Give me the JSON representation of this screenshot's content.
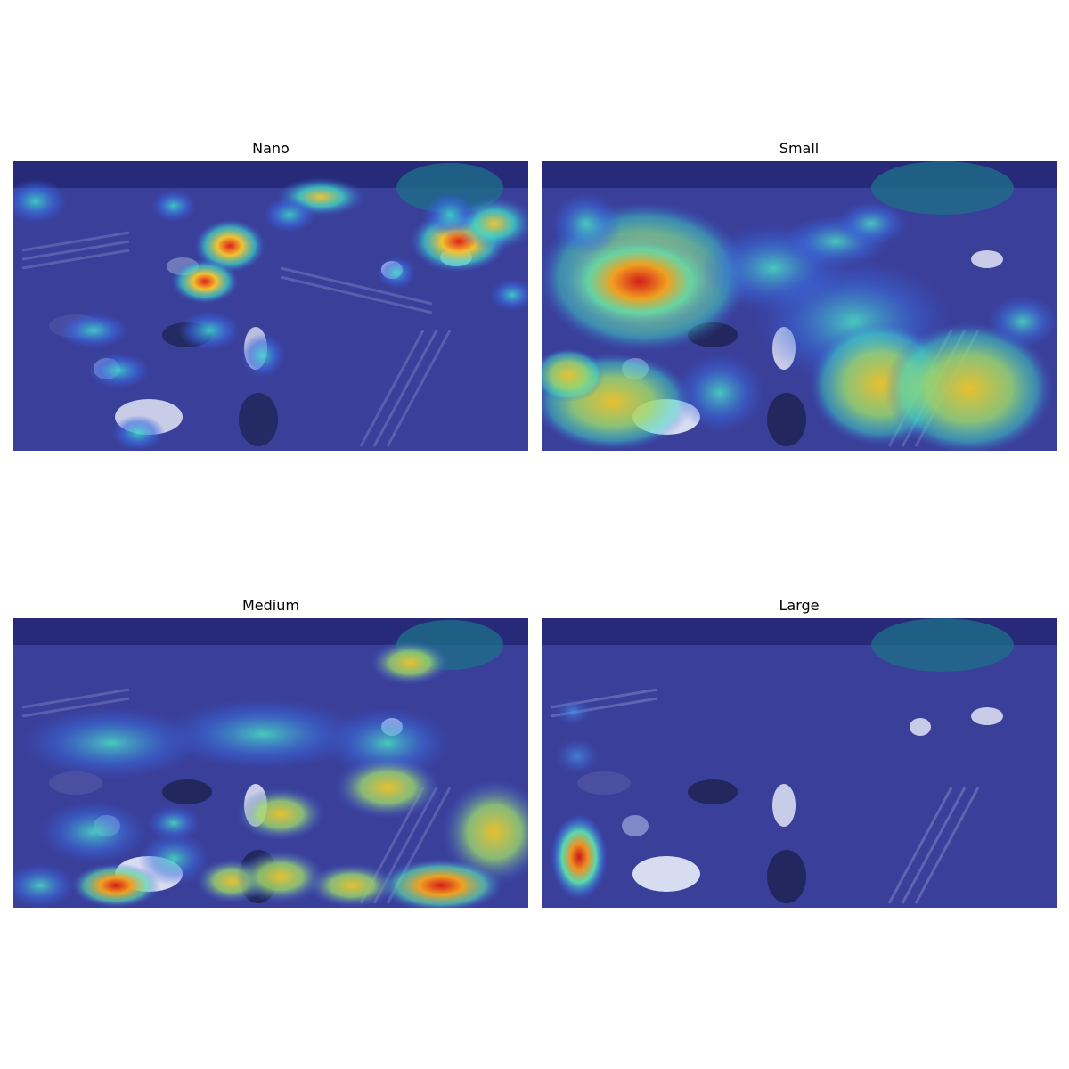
{
  "panels": [
    {
      "title": "Nano",
      "heatmap": "nano"
    },
    {
      "title": "Small",
      "heatmap": "small"
    },
    {
      "title": "Medium",
      "heatmap": "medium"
    },
    {
      "title": "Large",
      "heatmap": "large"
    }
  ],
  "colors": {
    "base_overlay": "#2a2f8c",
    "hot": "#e0201a",
    "warm": "#f2c230",
    "cool": "#3fd6c8",
    "cold": "#2846d8"
  }
}
